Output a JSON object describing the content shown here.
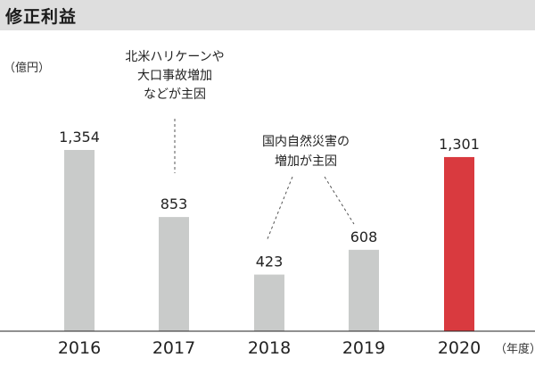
{
  "title": "修正利益",
  "chart_data": {
    "type": "bar",
    "categories": [
      "2016",
      "2017",
      "2018",
      "2019",
      "2020"
    ],
    "values": [
      1354,
      853,
      423,
      608,
      1301
    ],
    "value_labels": [
      "1,354",
      "853",
      "423",
      "608",
      "1,301"
    ],
    "ylabel": "（億円）",
    "xlabel": "（年度）",
    "ylim": [
      0,
      1354
    ],
    "grid": false,
    "colors": {
      "bar": "#c9cbca",
      "highlight": "#d93a3f",
      "highlight_category": "2020",
      "axis": "#222222",
      "leader": "#555555"
    },
    "annotations": [
      {
        "lines": [
          "北米ハリケーンや",
          "大口事故増加",
          "などが主因"
        ],
        "targets": [
          "2017"
        ]
      },
      {
        "lines": [
          "国内自然災害の",
          "増加が主因"
        ],
        "targets": [
          "2018",
          "2019"
        ]
      }
    ]
  }
}
